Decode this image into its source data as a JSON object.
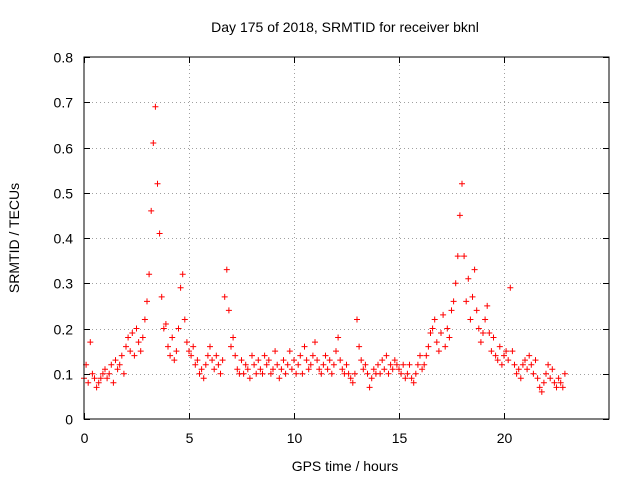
{
  "chart_data": {
    "type": "scatter",
    "title": "Day 175 of 2018, SRMTID for receiver bknl",
    "xlabel": "GPS time / hours",
    "ylabel": "SRMTID / TECUs",
    "xlim": [
      0,
      25
    ],
    "ylim": [
      0,
      0.8
    ],
    "xticks": [
      0,
      5,
      10,
      15,
      20
    ],
    "yticks": [
      0,
      0.1,
      0.2,
      0.3,
      0.4,
      0.5,
      0.6,
      0.7,
      0.8
    ],
    "grid": true,
    "marker": "plus",
    "series": [
      {
        "name": "SRMTID",
        "color": "#ff0000",
        "x_start": 0.0,
        "x_step": 0.1,
        "values": [
          0.09,
          0.12,
          0.08,
          0.17,
          0.1,
          0.09,
          0.07,
          0.08,
          0.09,
          0.1,
          0.11,
          0.09,
          0.1,
          0.12,
          0.08,
          0.13,
          0.11,
          0.12,
          0.14,
          0.1,
          0.16,
          0.18,
          0.15,
          0.19,
          0.14,
          0.2,
          0.17,
          0.15,
          0.18,
          0.22,
          0.26,
          0.32,
          0.46,
          0.61,
          0.69,
          0.52,
          0.41,
          0.27,
          0.2,
          0.21,
          0.16,
          0.14,
          0.18,
          0.13,
          0.15,
          0.2,
          0.29,
          0.32,
          0.22,
          0.17,
          0.15,
          0.14,
          0.16,
          0.12,
          0.13,
          0.1,
          0.11,
          0.09,
          0.12,
          0.14,
          0.16,
          0.13,
          0.11,
          0.14,
          0.12,
          0.1,
          0.13,
          0.27,
          0.33,
          0.24,
          0.16,
          0.18,
          0.14,
          0.11,
          0.1,
          0.13,
          0.1,
          0.12,
          0.11,
          0.09,
          0.14,
          0.12,
          0.1,
          0.13,
          0.11,
          0.1,
          0.14,
          0.12,
          0.13,
          0.1,
          0.11,
          0.15,
          0.12,
          0.09,
          0.11,
          0.13,
          0.1,
          0.12,
          0.15,
          0.11,
          0.13,
          0.1,
          0.12,
          0.14,
          0.1,
          0.16,
          0.13,
          0.11,
          0.12,
          0.14,
          0.17,
          0.13,
          0.11,
          0.1,
          0.12,
          0.14,
          0.11,
          0.13,
          0.1,
          0.12,
          0.15,
          0.18,
          0.13,
          0.11,
          0.1,
          0.12,
          0.1,
          0.09,
          0.08,
          0.1,
          0.22,
          0.16,
          0.13,
          0.11,
          0.12,
          0.1,
          0.07,
          0.09,
          0.11,
          0.1,
          0.12,
          0.1,
          0.13,
          0.11,
          0.14,
          0.1,
          0.12,
          0.11,
          0.13,
          0.12,
          0.11,
          0.1,
          0.12,
          0.09,
          0.1,
          0.12,
          0.09,
          0.08,
          0.1,
          0.12,
          0.14,
          0.11,
          0.12,
          0.14,
          0.16,
          0.19,
          0.2,
          0.22,
          0.17,
          0.15,
          0.19,
          0.23,
          0.16,
          0.2,
          0.18,
          0.24,
          0.26,
          0.3,
          0.36,
          0.45,
          0.52,
          0.36,
          0.26,
          0.31,
          0.22,
          0.27,
          0.33,
          0.24,
          0.2,
          0.17,
          0.19,
          0.22,
          0.25,
          0.19,
          0.15,
          0.18,
          0.14,
          0.13,
          0.16,
          0.12,
          0.14,
          0.15,
          0.13,
          0.29,
          0.15,
          0.12,
          0.1,
          0.11,
          0.09,
          0.12,
          0.13,
          0.11,
          0.14,
          0.12,
          0.1,
          0.13,
          0.09,
          0.07,
          0.06,
          0.08,
          0.1,
          0.12,
          0.09,
          0.11,
          0.08,
          0.07,
          0.09,
          0.08,
          0.07,
          0.1
        ]
      }
    ]
  }
}
